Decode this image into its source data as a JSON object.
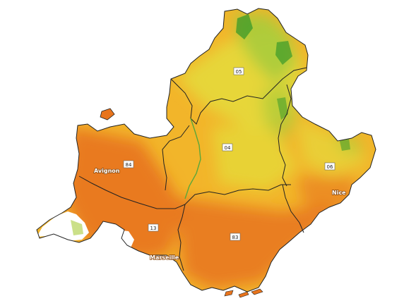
{
  "map": {
    "colors": {
      "high": "#e8741c",
      "medium": "#f2b52a",
      "low": "#e6d93a",
      "vegetation": "#a9cc3a",
      "forest": "#3a9a2a",
      "urban": "#ffffff",
      "water": "#ffffff",
      "boundary": "#222222"
    },
    "departments": [
      {
        "code": "05"
      },
      {
        "code": "04"
      },
      {
        "code": "84"
      },
      {
        "code": "06"
      },
      {
        "code": "13"
      },
      {
        "code": "83"
      }
    ],
    "cities": [
      {
        "name": "Avignon"
      },
      {
        "name": "Nice"
      },
      {
        "name": "Marseille"
      }
    ]
  }
}
